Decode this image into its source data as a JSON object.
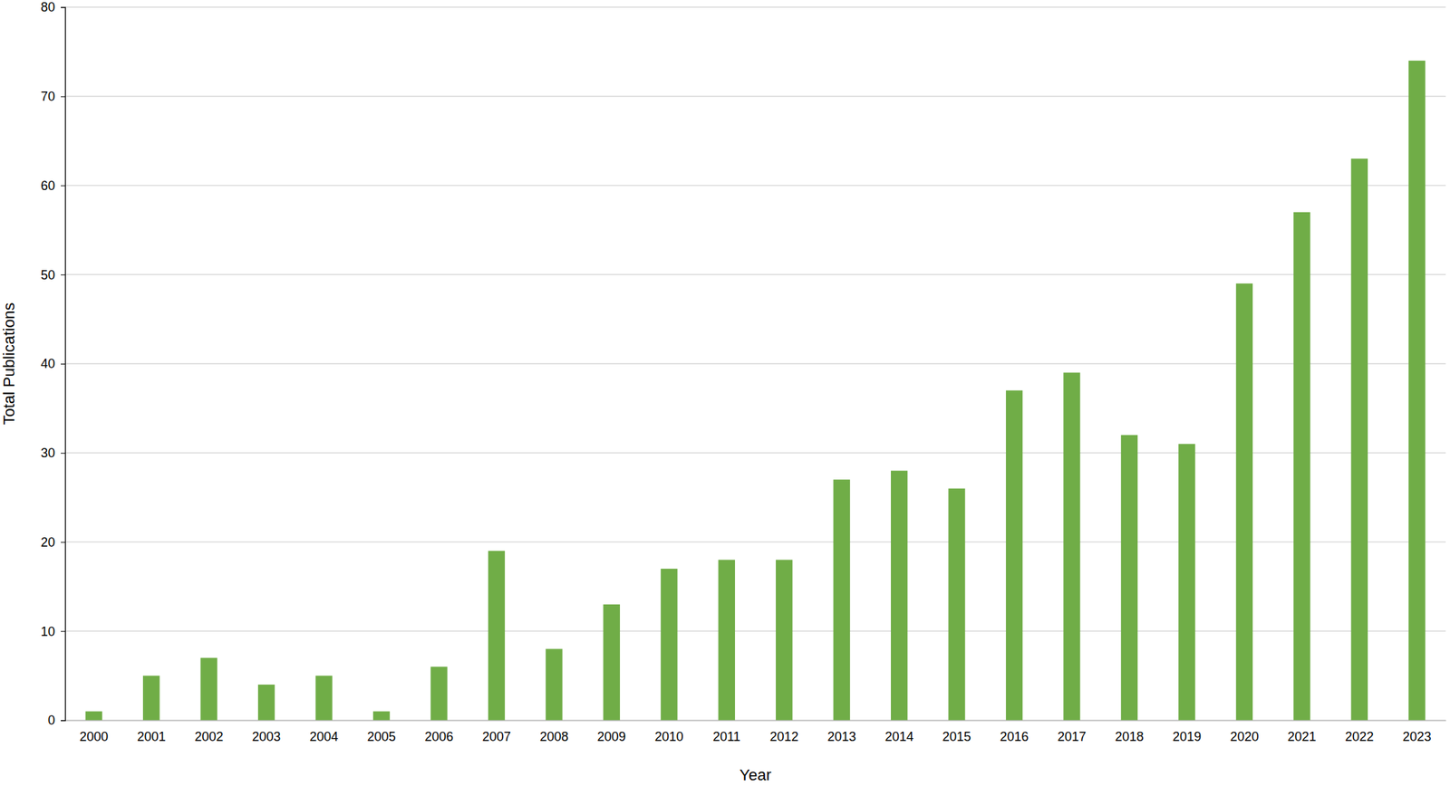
{
  "chart_data": {
    "type": "bar",
    "x_label": "Year",
    "y_label": "Total Publications",
    "categories": [
      "2000",
      "2001",
      "2002",
      "2003",
      "2004",
      "2005",
      "2006",
      "2007",
      "2008",
      "2009",
      "2010",
      "2011",
      "2012",
      "2013",
      "2014",
      "2015",
      "2016",
      "2017",
      "2018",
      "2019",
      "2020",
      "2021",
      "2022",
      "2023"
    ],
    "values": [
      1,
      5,
      7,
      4,
      5,
      1,
      6,
      19,
      8,
      13,
      17,
      18,
      18,
      27,
      28,
      26,
      37,
      39,
      32,
      31,
      49,
      57,
      63,
      74
    ],
    "color": "#70ad47",
    "ylim": [
      0,
      80
    ],
    "yticks": [
      0,
      10,
      20,
      30,
      40,
      50,
      60,
      70,
      80
    ],
    "grid": true
  }
}
